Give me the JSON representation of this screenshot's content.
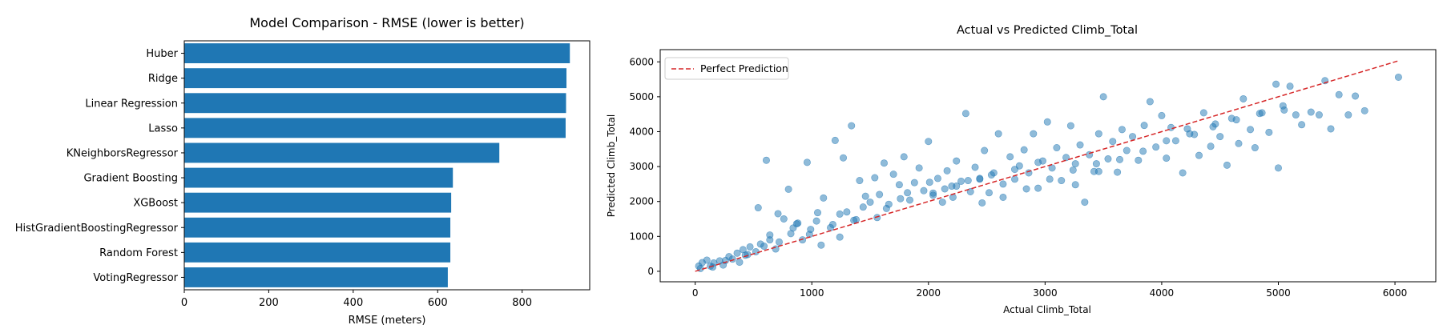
{
  "chart_data": [
    {
      "type": "bar",
      "orientation": "horizontal",
      "title": "Model Comparison - RMSE (lower is better)",
      "xlabel": "RMSE (meters)",
      "ylabel": "",
      "categories": [
        "Huber",
        "Ridge",
        "Linear Regression",
        "Lasso",
        "KNeighborsRegressor",
        "Gradient Boosting",
        "XGBoost",
        "HistGradientBoostingRegressor",
        "Random Forest",
        "VotingRegressor"
      ],
      "values": [
        913,
        905,
        904,
        903,
        746,
        636,
        632,
        630,
        630,
        624
      ],
      "xlim": [
        0,
        960
      ],
      "xticks": [
        0,
        200,
        400,
        600,
        800
      ],
      "bar_color": "#1f77b4",
      "grid": false
    },
    {
      "type": "scatter",
      "title": "Actual vs Predicted Climb_Total",
      "xlabel": "Actual Climb_Total",
      "ylabel": "Predicted Climb_Total",
      "xlim": [
        -300,
        6350
      ],
      "ylim": [
        -300,
        6350
      ],
      "xticks": [
        0,
        1000,
        2000,
        3000,
        4000,
        5000,
        6000
      ],
      "yticks": [
        0,
        1000,
        2000,
        3000,
        4000,
        5000,
        6000
      ],
      "point_color": "#1f77b4",
      "legend": {
        "location": "upper-left",
        "entries": [
          "Perfect Prediction"
        ]
      },
      "reference_line": {
        "label": "Perfect Prediction",
        "from": [
          0,
          0
        ],
        "to": [
          6030,
          6030
        ],
        "color": "#d62728",
        "style": "dashed"
      },
      "grid": false,
      "points": [
        [
          30,
          150
        ],
        [
          60,
          250
        ],
        [
          100,
          320
        ],
        [
          45,
          80
        ],
        [
          130,
          150
        ],
        [
          160,
          240
        ],
        [
          210,
          300
        ],
        [
          240,
          180
        ],
        [
          290,
          420
        ],
        [
          320,
          350
        ],
        [
          360,
          520
        ],
        [
          380,
          260
        ],
        [
          410,
          620
        ],
        [
          450,
          480
        ],
        [
          470,
          700
        ],
        [
          520,
          560
        ],
        [
          540,
          1820
        ],
        [
          560,
          780
        ],
        [
          610,
          3180
        ],
        [
          640,
          900
        ],
        [
          690,
          640
        ],
        [
          710,
          1650
        ],
        [
          760,
          1500
        ],
        [
          800,
          2350
        ],
        [
          820,
          1080
        ],
        [
          880,
          1380
        ],
        [
          920,
          900
        ],
        [
          960,
          3120
        ],
        [
          990,
          1200
        ],
        [
          1050,
          1680
        ],
        [
          1080,
          750
        ],
        [
          1100,
          2100
        ],
        [
          1160,
          1250
        ],
        [
          1200,
          3750
        ],
        [
          1240,
          980
        ],
        [
          1270,
          3250
        ],
        [
          1300,
          1700
        ],
        [
          1340,
          4170
        ],
        [
          1380,
          1480
        ],
        [
          1410,
          2600
        ],
        [
          1460,
          2150
        ],
        [
          1500,
          1980
        ],
        [
          1540,
          2680
        ],
        [
          1580,
          2200
        ],
        [
          1620,
          3100
        ],
        [
          1660,
          1920
        ],
        [
          1700,
          2780
        ],
        [
          1750,
          2480
        ],
        [
          1790,
          3280
        ],
        [
          1820,
          2250
        ],
        [
          1880,
          2540
        ],
        [
          1920,
          2960
        ],
        [
          1960,
          2310
        ],
        [
          2000,
          3720
        ],
        [
          2040,
          2180
        ],
        [
          2080,
          2660
        ],
        [
          2120,
          1980
        ],
        [
          2160,
          2880
        ],
        [
          2200,
          2440
        ],
        [
          2240,
          3160
        ],
        [
          2280,
          2580
        ],
        [
          2320,
          4520
        ],
        [
          2360,
          2280
        ],
        [
          2400,
          2980
        ],
        [
          2440,
          2660
        ],
        [
          2480,
          3460
        ],
        [
          2520,
          2250
        ],
        [
          2560,
          2820
        ],
        [
          2600,
          3940
        ],
        [
          2640,
          2500
        ],
        [
          2700,
          3280
        ],
        [
          2740,
          2640
        ],
        [
          2780,
          3020
        ],
        [
          2820,
          3480
        ],
        [
          2860,
          2820
        ],
        [
          2900,
          3940
        ],
        [
          2940,
          2380
        ],
        [
          2980,
          3160
        ],
        [
          3020,
          4280
        ],
        [
          3060,
          2960
        ],
        [
          3100,
          3540
        ],
        [
          3140,
          2600
        ],
        [
          3180,
          3260
        ],
        [
          3220,
          4170
        ],
        [
          3260,
          3080
        ],
        [
          3300,
          3620
        ],
        [
          3340,
          1980
        ],
        [
          3380,
          3340
        ],
        [
          3420,
          2860
        ],
        [
          3460,
          3940
        ],
        [
          3500,
          5000
        ],
        [
          3540,
          3220
        ],
        [
          3580,
          3720
        ],
        [
          3620,
          2840
        ],
        [
          3660,
          4060
        ],
        [
          3700,
          3460
        ],
        [
          3750,
          3860
        ],
        [
          3800,
          3180
        ],
        [
          3850,
          4180
        ],
        [
          3900,
          4860
        ],
        [
          3950,
          3560
        ],
        [
          4000,
          4460
        ],
        [
          4040,
          3240
        ],
        [
          4080,
          4120
        ],
        [
          4120,
          3740
        ],
        [
          4180,
          2820
        ],
        [
          4220,
          4080
        ],
        [
          4280,
          3920
        ],
        [
          4320,
          3320
        ],
        [
          4360,
          4540
        ],
        [
          4420,
          3580
        ],
        [
          4460,
          4220
        ],
        [
          4500,
          3860
        ],
        [
          4560,
          3040
        ],
        [
          4600,
          4380
        ],
        [
          4660,
          3660
        ],
        [
          4700,
          4940
        ],
        [
          4760,
          4060
        ],
        [
          4800,
          3540
        ],
        [
          4860,
          4540
        ],
        [
          4920,
          3980
        ],
        [
          4980,
          5360
        ],
        [
          5000,
          2960
        ],
        [
          5050,
          4620
        ],
        [
          5100,
          5300
        ],
        [
          5150,
          4480
        ],
        [
          5200,
          4200
        ],
        [
          5280,
          4560
        ],
        [
          5350,
          4480
        ],
        [
          5400,
          5460
        ],
        [
          5450,
          4080
        ],
        [
          5520,
          5060
        ],
        [
          5600,
          4480
        ],
        [
          5660,
          5020
        ],
        [
          5740,
          4600
        ],
        [
          6030,
          5560
        ],
        [
          2010,
          2550
        ],
        [
          2210,
          2120
        ],
        [
          2460,
          1960
        ],
        [
          1760,
          2080
        ],
        [
          1560,
          1540
        ],
        [
          1360,
          1460
        ],
        [
          1180,
          1340
        ],
        [
          980,
          1060
        ],
        [
          870,
          1360
        ],
        [
          720,
          840
        ],
        [
          590,
          720
        ],
        [
          430,
          460
        ],
        [
          260,
          310
        ],
        [
          150,
          120
        ],
        [
          3260,
          2480
        ],
        [
          3460,
          2860
        ],
        [
          3640,
          3200
        ],
        [
          3840,
          3440
        ],
        [
          4040,
          3740
        ],
        [
          4240,
          3940
        ],
        [
          4440,
          4140
        ],
        [
          4640,
          4340
        ],
        [
          4840,
          4520
        ],
        [
          5040,
          4740
        ],
        [
          2640,
          2120
        ],
        [
          2840,
          2360
        ],
        [
          3040,
          2640
        ],
        [
          3240,
          2900
        ],
        [
          3440,
          3080
        ],
        [
          2140,
          2360
        ],
        [
          2340,
          2600
        ],
        [
          2540,
          2760
        ],
        [
          2740,
          2920
        ],
        [
          2940,
          3120
        ],
        [
          1640,
          1800
        ],
        [
          1840,
          2040
        ],
        [
          2040,
          2240
        ],
        [
          2240,
          2440
        ],
        [
          2440,
          2640
        ],
        [
          1240,
          1640
        ],
        [
          1440,
          1840
        ],
        [
          1040,
          1440
        ],
        [
          840,
          1240
        ],
        [
          640,
          1040
        ]
      ]
    }
  ]
}
